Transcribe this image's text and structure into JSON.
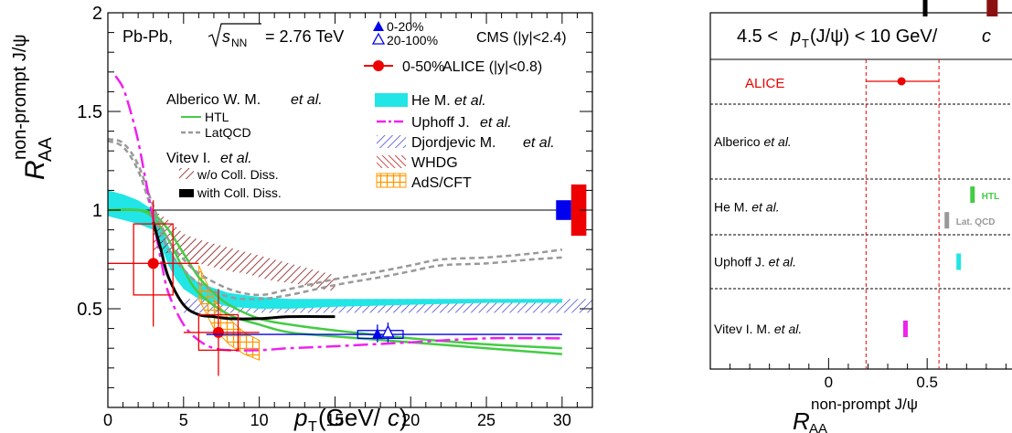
{
  "left_chart": {
    "type": "line",
    "xlabel_main": "p",
    "xlabel_sub": "T",
    "xlabel_unit_open": "(GeV/",
    "xlabel_unit_c": "c",
    "xlabel_unit_close": ")",
    "ylabel_main": "R",
    "ylabel_sub": "AA",
    "ylabel_sup": "non-prompt J/ψ",
    "xlim": [
      0,
      32
    ],
    "ylim": [
      0,
      2
    ],
    "xticks": [
      "0",
      "5",
      "10",
      "15",
      "20",
      "25",
      "30"
    ],
    "yticks": [
      "0.5",
      "1",
      "1.5",
      "2"
    ],
    "system_label": "Pb-Pb,",
    "energy_label": "s",
    "energy_sub": "NN",
    "energy_value": "= 2.76 TeV",
    "legend": {
      "cms_centrality_1": "0-20%",
      "cms_centrality_2": "20-100%",
      "cms_label": "CMS (|y|<2.4)",
      "alice_centrality": "0-50%",
      "alice_label": "ALICE (|y|<0.8)",
      "alberico_group": "Alberico W. M.",
      "alberico_etal": "et al.",
      "htl": "HTL",
      "latqcd": "LatQCD",
      "vitev_group": "Vitev I.",
      "vitev_etal": "et al.",
      "wo_coll": "w/o Coll. Diss.",
      "with_coll": "with Coll. Diss.",
      "he": "He M.",
      "he_etal": "et al.",
      "uphoff": "Uphoff J.",
      "uphoff_etal": "et al.",
      "djordjevic": "Djordjevic M.",
      "djordjevic_etal": "et al.",
      "whdg": "WHDG",
      "adscft": "AdS/CFT"
    },
    "alice_points": [
      {
        "x": 3.0,
        "y": 0.73,
        "xerr_low": 3.0,
        "xerr_high": 3.0,
        "yerr": 0.22,
        "sys_low": 0.57,
        "sys_high": 0.93
      },
      {
        "x": 7.3,
        "y": 0.38,
        "xerr_low": 2.3,
        "xerr_high": 2.7,
        "yerr": 0.12,
        "sys_low": 0.29,
        "sys_high": 0.47
      }
    ],
    "cms_points": [
      {
        "x": 17.8,
        "y": 0.37,
        "xlow": 6.5,
        "xhigh": 30,
        "fill": true
      },
      {
        "x": 18.5,
        "y": 0.38,
        "fill": false
      }
    ],
    "global_unc": {
      "cms_box": [
        0.95,
        1.05
      ],
      "alice_box": [
        0.87,
        1.13
      ]
    },
    "series": [
      {
        "name": "HTL",
        "color": "#44cc44",
        "x": [
          0,
          2,
          3,
          4,
          5,
          6,
          7,
          8,
          10,
          12,
          15,
          20,
          25,
          30
        ],
        "y": [
          1.0,
          1.0,
          0.98,
          0.9,
          0.78,
          0.66,
          0.58,
          0.52,
          0.45,
          0.42,
          0.39,
          0.35,
          0.32,
          0.3
        ]
      },
      {
        "name": "HTL-2",
        "color": "#44cc44",
        "x": [
          0,
          2,
          3,
          4,
          5,
          6,
          8,
          10,
          12,
          15,
          20,
          25,
          30
        ],
        "y": [
          1.0,
          1.0,
          0.96,
          0.85,
          0.7,
          0.58,
          0.47,
          0.42,
          0.38,
          0.36,
          0.33,
          0.3,
          0.27
        ]
      },
      {
        "name": "LatQCD",
        "color": "#999999",
        "x": [
          0,
          1,
          2,
          3,
          4,
          5,
          6,
          8,
          10,
          12,
          15,
          18,
          20,
          22,
          25,
          28,
          30
        ],
        "y": [
          1.35,
          1.32,
          1.2,
          0.98,
          0.8,
          0.7,
          0.63,
          0.56,
          0.55,
          0.57,
          0.62,
          0.66,
          0.69,
          0.72,
          0.73,
          0.75,
          0.76
        ]
      },
      {
        "name": "LatQCD-2",
        "color": "#999999",
        "x": [
          0,
          1,
          2,
          3,
          4,
          5,
          6,
          8,
          10,
          12,
          15,
          18,
          20,
          22,
          25,
          28,
          30
        ],
        "y": [
          1.36,
          1.34,
          1.23,
          1.02,
          0.85,
          0.75,
          0.68,
          0.6,
          0.57,
          0.6,
          0.65,
          0.69,
          0.72,
          0.75,
          0.76,
          0.78,
          0.8
        ]
      },
      {
        "name": "Uphoff",
        "color": "#ee22ee",
        "x": [
          0.5,
          1,
          1.5,
          2,
          2.5,
          3,
          3.5,
          4,
          5,
          6,
          7,
          8,
          10,
          12,
          15,
          20,
          25,
          30
        ],
        "y": [
          1.68,
          1.62,
          1.5,
          1.35,
          1.15,
          0.95,
          0.75,
          0.58,
          0.42,
          0.34,
          0.3,
          0.29,
          0.29,
          0.3,
          0.31,
          0.33,
          0.35,
          0.35
        ]
      },
      {
        "name": "with Coll. Diss.",
        "color": "#000000",
        "x": [
          3,
          3.5,
          4,
          5,
          6,
          7,
          8,
          10,
          12,
          15
        ],
        "y": [
          0.94,
          0.8,
          0.66,
          0.52,
          0.47,
          0.46,
          0.45,
          0.45,
          0.46,
          0.46
        ]
      }
    ],
    "he_band": {
      "x": [
        0,
        1,
        2,
        3,
        3.5,
        4,
        4.5,
        5,
        6,
        8,
        10,
        12,
        15,
        20,
        25,
        30
      ],
      "y_low": [
        0.97,
        0.95,
        0.93,
        0.9,
        0.82,
        0.72,
        0.65,
        0.6,
        0.55,
        0.51,
        0.5,
        0.5,
        0.51,
        0.52,
        0.53,
        0.53
      ],
      "y_high": [
        1.1,
        1.08,
        1.05,
        1.0,
        0.92,
        0.82,
        0.75,
        0.7,
        0.63,
        0.58,
        0.56,
        0.55,
        0.55,
        0.55,
        0.55,
        0.55
      ]
    },
    "djordjevic_band": {
      "x": [
        5,
        32
      ],
      "y_low": 0.48,
      "y_high": 0.55
    },
    "whdg_band": {
      "x": [
        3,
        4,
        5,
        6,
        7,
        8,
        9,
        10,
        11,
        12,
        13,
        14,
        15
      ],
      "y_low": [
        0.8,
        0.78,
        0.75,
        0.73,
        0.71,
        0.69,
        0.68,
        0.66,
        0.64,
        0.63,
        0.62,
        0.6,
        0.59
      ],
      "y_high": [
        1.0,
        0.95,
        0.88,
        0.85,
        0.83,
        0.81,
        0.79,
        0.77,
        0.75,
        0.73,
        0.71,
        0.69,
        0.67
      ]
    },
    "adscft_band": {
      "x": [
        6,
        7,
        8,
        9,
        10
      ],
      "y_low": [
        0.55,
        0.4,
        0.32,
        0.27,
        0.24
      ],
      "y_high": [
        0.72,
        0.55,
        0.45,
        0.38,
        0.34
      ]
    }
  },
  "right_chart": {
    "type": "bar",
    "header_prefix": "4.5 <",
    "header_p": "p",
    "header_sub": "T",
    "header_mid": "(J/ψ) < 10 GeV/",
    "header_c": "c",
    "xlabel_main": "R",
    "xlabel_sub": "AA",
    "xlabel_sup": "non-prompt J/ψ",
    "xlim": [
      -0.6,
      1.0
    ],
    "xticks": [
      "0",
      "0.5"
    ],
    "alice_label": "ALICE",
    "alice_value": 0.37,
    "alice_err": [
      0.19,
      0.56
    ],
    "rows": [
      {
        "label": "Alberico",
        "label_it": "et al."
      },
      {
        "label": "He M.",
        "label_it": "et al."
      },
      {
        "label": "Uphoff J.",
        "label_it": "et al."
      },
      {
        "label": "Vitev I. M.",
        "label_it": "et al."
      }
    ],
    "markers": [
      {
        "label": "HTL",
        "value": 0.73,
        "color": "#44cc44",
        "row": 1,
        "pos": "upper"
      },
      {
        "label": "Lat. QCD",
        "value": 0.6,
        "color": "#999999",
        "row": 1,
        "pos": "lower"
      },
      {
        "label": "",
        "value": 0.66,
        "color": "#22e5e5",
        "row": 2,
        "pos": "mid"
      },
      {
        "label": "",
        "value": 0.39,
        "color": "#ee22ee",
        "row": 3,
        "pos": "mid"
      },
      {
        "label": "w/o Coll. Diss.",
        "value": 0.83,
        "color": "#8b1010",
        "row": 4,
        "pos": "upper"
      },
      {
        "label": "with Coll. Diss.",
        "value": 0.49,
        "color": "#000000",
        "row": 4,
        "pos": "lower"
      }
    ]
  }
}
